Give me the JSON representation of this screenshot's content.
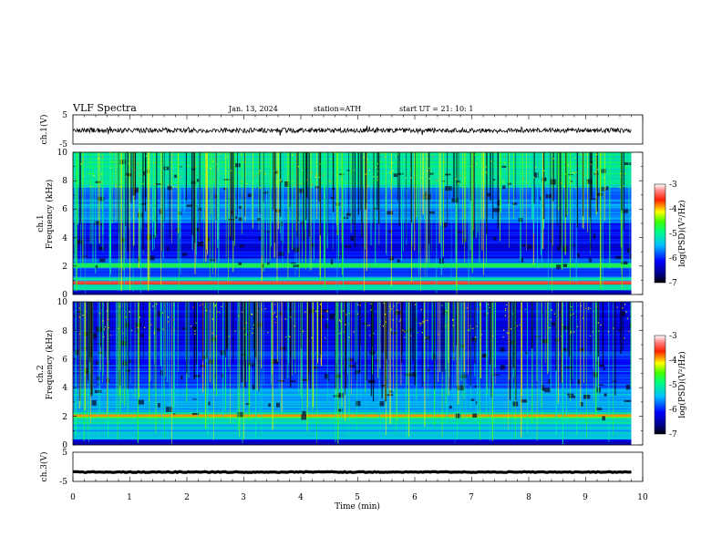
{
  "header": {
    "title": "VLF  Spectra",
    "date": "Jan. 13, 2024",
    "station": "station=ATH",
    "start": "start  UT  =    21: 10: 1"
  },
  "colors": {
    "spectrogram_background": "#1a2ad8",
    "colormap": [
      "#000000",
      "#00008b",
      "#0000ff",
      "#00bfff",
      "#00ff7f",
      "#ffff00",
      "#ff0000",
      "#ffffff"
    ],
    "waveform_line": "#000000"
  },
  "chart_data": [
    {
      "type": "line",
      "panel": "ch1-waveform",
      "ylabel": "ch.1(V)",
      "ylim": [
        -5,
        5
      ],
      "yticks": [
        "5",
        "-5"
      ],
      "xlim": [
        0,
        10
      ],
      "series": [
        {
          "baseline": -0.3,
          "noise_amplitude": 0.8,
          "x_end": 9.8
        }
      ]
    },
    {
      "type": "heatmap",
      "panel": "ch1-spectrogram",
      "ylabel_top": "ch.1",
      "ylabel": "Frequency (kHz)",
      "ylim": [
        0,
        10
      ],
      "yticks": [
        "0",
        "2",
        "4",
        "6",
        "8",
        "10"
      ],
      "xlim": [
        0,
        10
      ],
      "colorbar": {
        "label": "log(PSD)(V²/Hz)",
        "ticks": [
          "-3",
          "-4",
          "-5",
          "-6",
          "-7"
        ],
        "range": [
          -7,
          -3
        ]
      }
    },
    {
      "type": "heatmap",
      "panel": "ch2-spectrogram",
      "ylabel_top": "ch.2",
      "ylabel": "Frequency (kHz)",
      "ylim": [
        0,
        10
      ],
      "yticks": [
        "0",
        "2",
        "4",
        "6",
        "8",
        "10"
      ],
      "xlim": [
        0,
        10
      ],
      "colorbar": {
        "label": "log(PSD)(V²/Hz)",
        "ticks": [
          "-3",
          "-4",
          "-5",
          "-6",
          "-7"
        ],
        "range": [
          -7,
          -3
        ]
      }
    },
    {
      "type": "line",
      "panel": "ch3-waveform",
      "ylabel": "ch.3(V)",
      "ylim": [
        -5,
        5
      ],
      "yticks": [
        "5",
        "-5"
      ],
      "xlim": [
        0,
        10
      ],
      "xlabel": "Time  (min)",
      "xticks": [
        "0",
        "1",
        "2",
        "3",
        "4",
        "5",
        "6",
        "7",
        "8",
        "9",
        "10"
      ],
      "series": [
        {
          "baseline": -1.8,
          "noise_amplitude": 0.15,
          "x_end": 9.8
        }
      ]
    }
  ]
}
